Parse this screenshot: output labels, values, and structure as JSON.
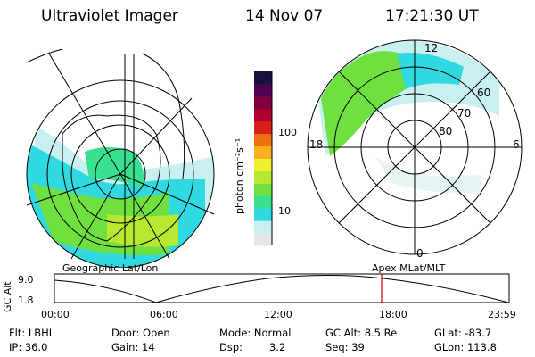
{
  "header": {
    "title": "Ultraviolet Imager",
    "date": "14 Nov 07",
    "time": "17:21:30 UT"
  },
  "colorbar": {
    "unit_label": "photon cm⁻²s⁻¹",
    "tick_100": "100",
    "tick_10": "10",
    "colors": [
      "#e6e6e6",
      "#c8f0f0",
      "#30d8e0",
      "#38e090",
      "#70e040",
      "#b8e830",
      "#f0f030",
      "#f8b020",
      "#f07010",
      "#d82018",
      "#b00030",
      "#800040",
      "#500050",
      "#1a1040"
    ]
  },
  "geo_map": {
    "caption": "Geographic Lat/Lon"
  },
  "polar_map": {
    "caption": "Apex MLat/MLT",
    "mlt_labels": {
      "top": "12",
      "left": "18",
      "right": "6",
      "bottom": "0"
    },
    "lat_labels": [
      "60",
      "70",
      "80"
    ]
  },
  "altitude_plot": {
    "ylabel": "GC Alt",
    "ytick_top": "9.0",
    "ytick_bottom": "1.8",
    "xticks": [
      "00:00",
      "06:00",
      "12:00",
      "18:00",
      "23:59"
    ],
    "marker_color": "#cc0000"
  },
  "info": {
    "flt": "Flt: LBHL",
    "ip": "IP: 36.0",
    "door": "Door: Open",
    "gain": "Gain: 14",
    "mode": "Mode: Normal",
    "dsp_label": "Dsp:",
    "dsp_value": "3.2",
    "gcalt": "GC Alt: 8.5 Re",
    "seq": "Seq: 39",
    "glat": "GLat: -83.7",
    "glon": "GLon: 113.8"
  }
}
